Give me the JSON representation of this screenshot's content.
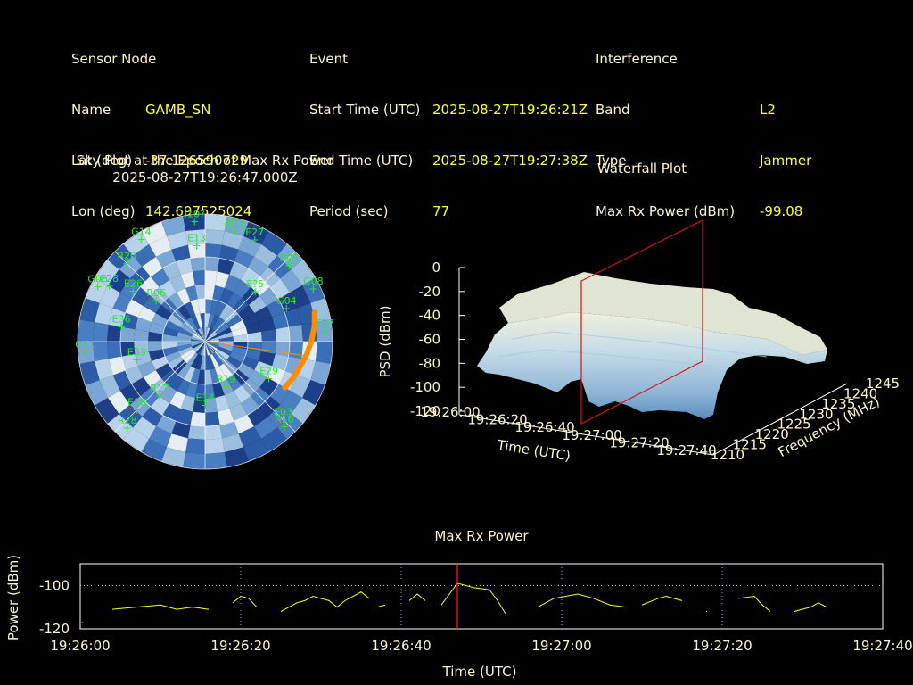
{
  "header": {
    "sensor": {
      "heading": "Sensor Node",
      "rows": [
        {
          "label": "Name",
          "value": "GAMB_SN"
        },
        {
          "label": "Lat (deg)",
          "value": "-37.126590729"
        },
        {
          "label": "Lon (deg)",
          "value": "142.697525024"
        }
      ]
    },
    "event": {
      "heading": "Event",
      "rows": [
        {
          "label": "Start Time (UTC)",
          "value": "2025-08-27T19:26:21Z"
        },
        {
          "label": "End Time (UTC)",
          "value": "2025-08-27T19:27:38Z"
        },
        {
          "label": "Period (sec)",
          "value": "77"
        }
      ]
    },
    "interference": {
      "heading": "Interference",
      "rows": [
        {
          "label": "Band",
          "value": "L2"
        },
        {
          "label": "Type",
          "value": "Jammer"
        },
        {
          "label": "Max Rx Power (dBm)",
          "value": "-99.08"
        }
      ]
    }
  },
  "colors": {
    "label": "#fff3c8",
    "value": "#ffff33",
    "satellite": "#22ee22",
    "bearing": "#ff8c00",
    "marker": "#ff2020",
    "trace": "#ffff00"
  },
  "chart_data": [
    {
      "type": "scatter",
      "title": "Sky Plot at the Epoch of Max Rx Power",
      "subtitle": "2025-08-27T19:26:47.000Z",
      "satellites": [
        {
          "id": "I10?",
          "az": 355,
          "el": 5
        },
        {
          "id": "G03",
          "az": 15,
          "el": 10
        },
        {
          "id": "E27",
          "az": 26,
          "el": 10
        },
        {
          "id": "G14",
          "az": 328,
          "el": 5
        },
        {
          "id": "E13",
          "az": 355,
          "el": 22
        },
        {
          "id": "R20",
          "az": 315,
          "el": 12
        },
        {
          "id": "R05",
          "az": 48,
          "el": 10
        },
        {
          "id": "G08",
          "az": 64,
          "el": 5
        },
        {
          "id": "G04",
          "az": 68,
          "el": 28
        },
        {
          "id": "E27",
          "az": 85,
          "el": 5
        },
        {
          "id": "E28",
          "az": 300,
          "el": 12
        },
        {
          "id": "G0n",
          "az": 297,
          "el": 5
        },
        {
          "id": "E26",
          "az": 305,
          "el": 28
        },
        {
          "id": "R06",
          "az": 310,
          "el": 45
        },
        {
          "id": "E36",
          "az": 280,
          "el": 30
        },
        {
          "id": "E33",
          "az": 255,
          "el": 40
        },
        {
          "id": "G11",
          "az": 265,
          "el": 5
        },
        {
          "id": "R17",
          "az": 220,
          "el": 40
        },
        {
          "id": "E14",
          "az": 180,
          "el": 45
        },
        {
          "id": "R19",
          "az": 155,
          "el": 55
        },
        {
          "id": "E03",
          "az": 135,
          "el": 12
        },
        {
          "id": "R16",
          "az": 137,
          "el": 8
        },
        {
          "id": "R28",
          "az": 222,
          "el": 8
        },
        {
          "id": "E29",
          "az": 120,
          "el": 38
        },
        {
          "id": "E18",
          "az": 225,
          "el": 22
        },
        {
          "id": "E?5",
          "az": 45,
          "el": 40
        }
      ],
      "bearing_track": [
        {
          "az": 75,
          "el": 10
        },
        {
          "az": 82,
          "el": 12
        },
        {
          "az": 90,
          "el": 15
        },
        {
          "az": 98,
          "el": 18
        },
        {
          "az": 106,
          "el": 21
        },
        {
          "az": 113,
          "el": 23
        },
        {
          "az": 120,
          "el": 25
        }
      ]
    },
    {
      "type": "area",
      "title": "Waterfall Plot",
      "xlabel": "Time (UTC)",
      "ylabel": "Frequency (MHz)",
      "zlabel": "PSD (dBm)",
      "time_ticks": [
        "19:26:00",
        "19:26:20",
        "19:26:40",
        "19:27:00",
        "19:27:20",
        "19:27:40"
      ],
      "freq_ticks": [
        "1210",
        "1215",
        "1220",
        "1225",
        "1230",
        "1235",
        "1240",
        "1245"
      ],
      "psd_ticks": [
        "0",
        "-20",
        "-40",
        "-60",
        "-80",
        "-100",
        "-120"
      ],
      "psd_range": [
        -120,
        0
      ],
      "marker_time": "19:26:47"
    },
    {
      "type": "line",
      "title": "Max Rx Power",
      "xlabel": "Time (UTC)",
      "ylabel": "Power (dBm)",
      "ylim": [
        -120,
        -90
      ],
      "yticks": [
        "-100",
        "-120"
      ],
      "threshold": -100,
      "x_ticks": [
        "19:26:00",
        "19:26:20",
        "19:26:40",
        "19:27:00",
        "19:27:20",
        "19:27:40"
      ],
      "marker_t": 47,
      "segments": [
        [
          [
            0.2,
            -117
          ]
        ],
        [
          [
            4,
            -111
          ],
          [
            7,
            -110
          ],
          [
            10,
            -109
          ],
          [
            12,
            -111
          ],
          [
            14,
            -110
          ],
          [
            16,
            -111
          ]
        ],
        [
          [
            19,
            -108
          ],
          [
            20,
            -105
          ],
          [
            21,
            -106
          ],
          [
            22,
            -110
          ]
        ],
        [
          [
            25,
            -112
          ],
          [
            27,
            -108
          ],
          [
            28,
            -107
          ],
          [
            29,
            -105
          ],
          [
            31,
            -107
          ],
          [
            32,
            -110
          ],
          [
            33,
            -107
          ],
          [
            35,
            -103
          ],
          [
            36,
            -106
          ]
        ],
        [
          [
            37,
            -110
          ],
          [
            38,
            -109
          ]
        ],
        [
          [
            41,
            -107
          ],
          [
            42,
            -104
          ],
          [
            43,
            -107
          ]
        ],
        [
          [
            45,
            -109
          ],
          [
            47,
            -99
          ],
          [
            49,
            -101
          ],
          [
            51,
            -102
          ],
          [
            52,
            -107
          ],
          [
            53,
            -113
          ]
        ],
        [
          [
            57,
            -110
          ],
          [
            59,
            -106
          ],
          [
            62,
            -104
          ],
          [
            64,
            -106
          ],
          [
            66,
            -109
          ],
          [
            68,
            -110
          ]
        ],
        [
          [
            70,
            -109
          ],
          [
            72,
            -106
          ],
          [
            73,
            -105
          ],
          [
            75,
            -107
          ]
        ],
        [
          [
            78,
            -112
          ]
        ],
        [
          [
            82,
            -106
          ],
          [
            84,
            -105
          ],
          [
            85,
            -109
          ],
          [
            86,
            -112
          ]
        ],
        [
          [
            89,
            -112
          ],
          [
            91,
            -110
          ],
          [
            92,
            -108
          ],
          [
            93,
            -110
          ]
        ]
      ]
    }
  ]
}
